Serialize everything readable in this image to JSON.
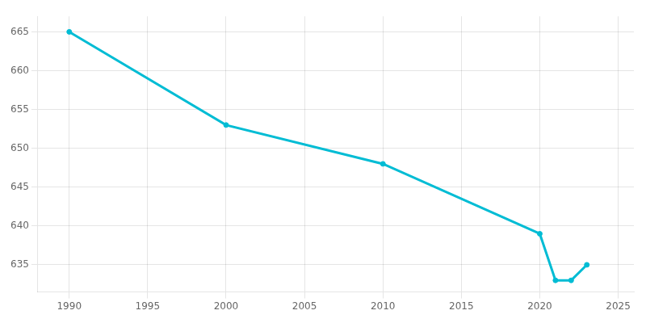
{
  "chart_data": {
    "type": "line",
    "x": [
      1990,
      2000,
      2010,
      2020,
      2021,
      2022,
      2023
    ],
    "values": [
      665,
      653,
      648,
      639,
      633,
      633,
      635
    ],
    "color": "#00BCD4",
    "marker": "circle",
    "xlim": [
      1988,
      2026
    ],
    "ylim": [
      631.5,
      667
    ],
    "xticks": [
      1990,
      1995,
      2000,
      2005,
      2010,
      2015,
      2020,
      2025
    ],
    "yticks": [
      635,
      640,
      645,
      650,
      655,
      660,
      665
    ],
    "grid": true
  }
}
